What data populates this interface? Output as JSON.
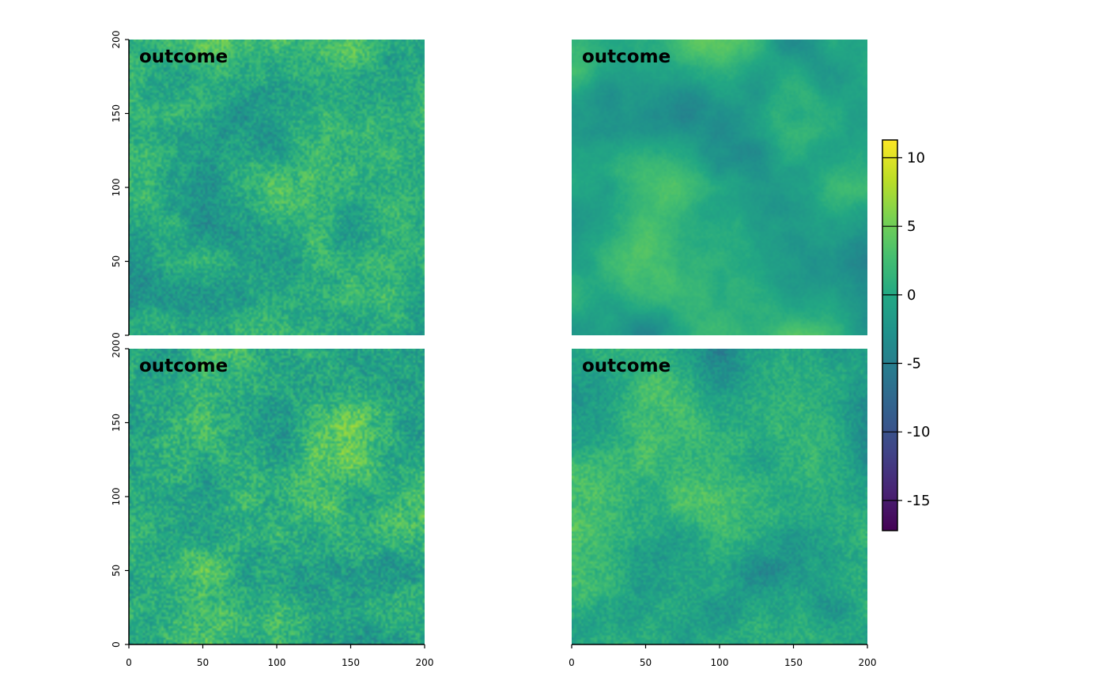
{
  "chart_data": {
    "type": "heatmap",
    "colormap": "viridis",
    "colors": {
      "viridis_low": "#440154",
      "viridis_high": "#fde725",
      "axis": "#000000"
    },
    "panels": [
      {
        "title": "outcome",
        "xlim": [
          0,
          200
        ],
        "ylim": [
          0,
          200
        ],
        "grid": false,
        "mean": 0.5,
        "roughness": 0.62,
        "noise": 2.2,
        "show_x_axis": false,
        "show_y_axis": true
      },
      {
        "title": "outcome",
        "xlim": [
          0,
          200
        ],
        "ylim": [
          0,
          200
        ],
        "grid": false,
        "mean": -0.3,
        "roughness": 0.46,
        "noise": 0.4,
        "show_x_axis": false,
        "show_y_axis": false
      },
      {
        "title": "outcome",
        "xlim": [
          0,
          200
        ],
        "ylim": [
          0,
          200
        ],
        "grid": false,
        "mean": 0.8,
        "roughness": 0.62,
        "noise": 2.6,
        "show_x_axis": true,
        "show_y_axis": true
      },
      {
        "title": "outcome",
        "xlim": [
          0,
          200
        ],
        "ylim": [
          0,
          200
        ],
        "grid": false,
        "mean": 0.4,
        "roughness": 0.5,
        "noise": 1.6,
        "show_x_axis": true,
        "show_y_axis": false
      }
    ],
    "x_ticks": [
      "0",
      "50",
      "100",
      "150",
      "200"
    ],
    "y_ticks": [
      "0",
      "50",
      "100",
      "150",
      "200"
    ],
    "x_tick_values": [
      0,
      50,
      100,
      150,
      200
    ],
    "y_tick_values": [
      0,
      50,
      100,
      150,
      200
    ],
    "legend": {
      "placement": "right",
      "range": [
        -17.2,
        11.3
      ],
      "ticks": [
        10,
        5,
        0,
        -5,
        -10,
        -15
      ],
      "tick_labels": [
        "10",
        "5",
        "0",
        "-5",
        "-10",
        "-15"
      ]
    }
  }
}
